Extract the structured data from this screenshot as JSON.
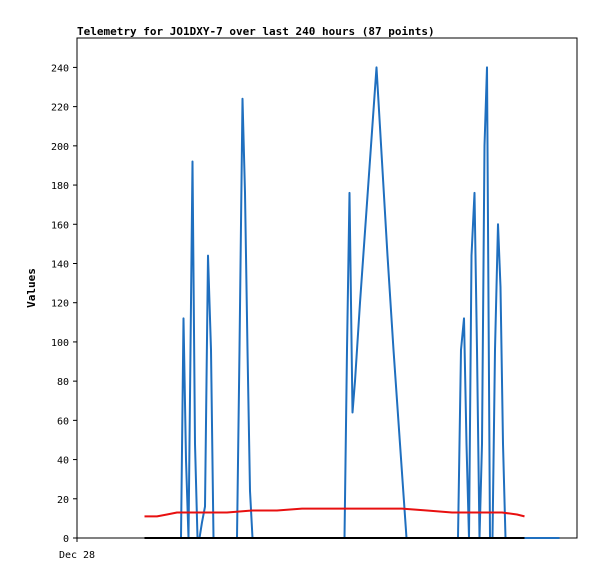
{
  "chart_data": {
    "type": "line",
    "title": "Telemetry for JO1DXY-7 over last 240 hours (87 points)",
    "xlabel": "",
    "ylabel": "Values",
    "ylim": [
      0,
      255
    ],
    "y_ticks": [
      0,
      20,
      40,
      60,
      80,
      100,
      120,
      140,
      160,
      180,
      200,
      220,
      240
    ],
    "x_tick_labels": [
      {
        "label": "Dec 28",
        "x": 0
      }
    ],
    "xlim": [
      0,
      100
    ],
    "grid": false,
    "legend": "none",
    "series": [
      {
        "color": "#1f6fbf",
        "x": [
          13.5,
          20.8,
          21.3,
          21.8,
          22.3,
          22.7,
          23.1,
          23.6,
          24.1,
          24.5,
          25.0,
          25.6,
          26.2,
          26.8,
          27.3,
          27.8,
          28.3,
          32.0,
          32.5,
          33.1,
          33.6,
          34.1,
          34.6,
          35.1,
          35.6,
          36.1,
          36.6,
          37.2,
          53.5,
          54.0,
          54.5,
          55.1,
          55.6,
          56.6,
          57.7,
          58.8,
          59.9,
          61.0,
          62.1,
          63.3,
          64.6,
          65.9,
          67.2,
          68.5,
          69.7,
          76.2,
          76.8,
          77.4,
          77.9,
          78.4,
          78.9,
          79.5,
          80.0,
          80.5,
          81.0,
          81.5,
          82.0,
          82.6,
          83.1,
          83.6,
          84.2,
          84.7,
          85.2,
          85.7,
          86.2,
          86.7,
          87.2,
          87.7,
          88.2,
          88.7,
          96.5
        ],
        "y": [
          0,
          0,
          112,
          40,
          0,
          96,
          192,
          48,
          0,
          0,
          8,
          16,
          144,
          96,
          0,
          0,
          0,
          0,
          96,
          224,
          176,
          96,
          24,
          0,
          0,
          0,
          0,
          0,
          0,
          96,
          176,
          64,
          80,
          120,
          160,
          200,
          240,
          192,
          144,
          96,
          48,
          0,
          0,
          0,
          0,
          0,
          96,
          112,
          48,
          0,
          144,
          176,
          96,
          0,
          48,
          200,
          240,
          0,
          0,
          96,
          160,
          128,
          48,
          0,
          0,
          0,
          0,
          0,
          0,
          0,
          0
        ]
      },
      {
        "color": "#e81010",
        "x": [
          13.5,
          16.0,
          18.0,
          20.0,
          25.0,
          30.0,
          35.0,
          40.0,
          45.0,
          50.0,
          55.0,
          60.0,
          65.0,
          70.0,
          75.0,
          80.0,
          85.0,
          88.0,
          89.5
        ],
        "y": [
          11,
          11,
          12,
          13,
          13,
          13,
          14,
          14,
          15,
          15,
          15,
          15,
          15,
          14,
          13,
          13,
          13,
          12,
          11
        ]
      },
      {
        "color": "#000000",
        "x": [
          13.5,
          20.0,
          40.0,
          60.0,
          80.0,
          89.5
        ],
        "y": [
          0,
          0,
          0,
          0,
          0,
          0
        ]
      }
    ]
  }
}
